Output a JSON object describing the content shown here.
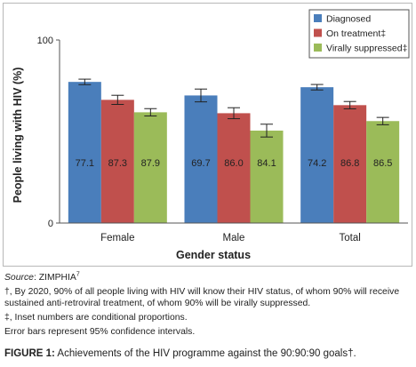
{
  "chart_data": {
    "type": "bar",
    "title": "",
    "xlabel": "Gender status",
    "ylabel": "People living with HIV (%)",
    "ylim": [
      0,
      100
    ],
    "yticks": [
      "0",
      "100"
    ],
    "categories": [
      "Female",
      "Male",
      "Total"
    ],
    "legend_position": "top-right",
    "grid": false,
    "series": [
      {
        "name": "Diagnosed",
        "color": "#4a7ebb",
        "values": [
          77.1,
          69.7,
          74.2
        ],
        "errors": [
          1.5,
          3.5,
          1.5
        ],
        "inset_labels": [
          "77.1",
          "69.7",
          "74.2"
        ]
      },
      {
        "name": "On treatment‡",
        "color": "#c0504d",
        "values": [
          67.3,
          60.0,
          64.4
        ],
        "errors": [
          2.5,
          3.0,
          2.0
        ],
        "inset_labels": [
          "87.3",
          "86.0",
          "86.8"
        ]
      },
      {
        "name": "Virally suppressed‡",
        "color": "#9bbb59",
        "values": [
          60.5,
          50.5,
          55.7
        ],
        "errors": [
          2.0,
          3.5,
          2.0
        ],
        "inset_labels": [
          "87.9",
          "84.1",
          "86.5"
        ]
      }
    ]
  },
  "notes": {
    "source_label": "Source",
    "source_text": ": ZIMPHIA",
    "source_sup": "7",
    "dagger_note": "†, By 2020, 90% of all people living with HIV will know their HIV status, of whom 90% will receive sustained anti-retroviral treatment, of whom 90% will be virally suppressed.",
    "ddagger_note": "‡, Inset numbers are conditional proportions.",
    "error_note": "Error bars represent 95% confidence intervals."
  },
  "figure_caption": {
    "label": "FIGURE 1:",
    "text": " Achievements of the HIV programme against the 90:90:90 goals†."
  }
}
